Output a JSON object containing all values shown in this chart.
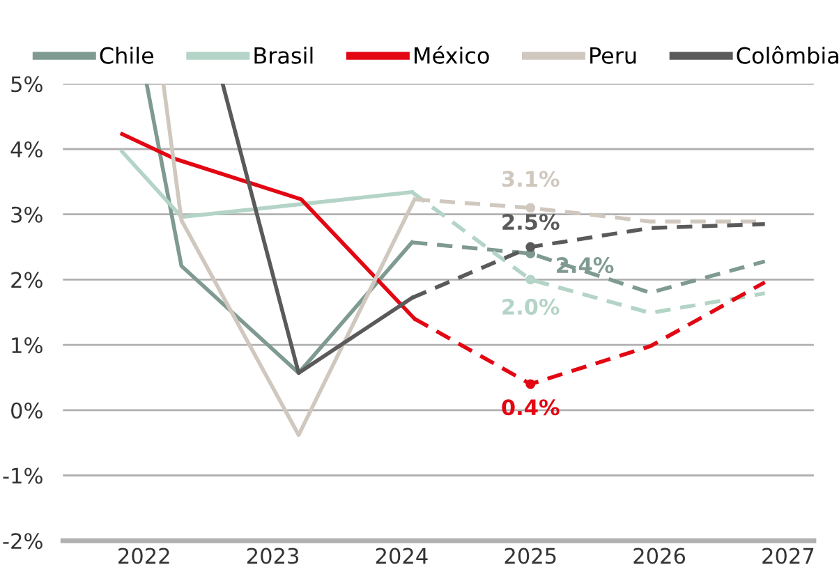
{
  "chart_data": {
    "type": "line",
    "series": [
      {
        "name": "Chile",
        "color": "#7f9a90",
        "line_style": "solid",
        "x": [
          2022.02,
          2022.29,
          2023.2,
          2024.08
        ],
        "values": [
          5.0,
          2.21,
          0.57,
          2.57
        ]
      },
      {
        "color": "#7f9a90",
        "line_style": "dashed",
        "x": [
          2024.08,
          2025.0,
          2025.93,
          2026.82
        ],
        "values": [
          2.57,
          2.4,
          1.8,
          2.28
        ],
        "value_labels": [
          null,
          "2.4%",
          null,
          null
        ]
      },
      {
        "name": "Brasil",
        "color": "#b3d4c6",
        "line_style": "solid",
        "x": [
          2021.83,
          2022.29,
          2024.08
        ],
        "values": [
          3.96,
          2.96,
          3.34
        ]
      },
      {
        "color": "#b3d4c6",
        "line_style": "dashed",
        "x": [
          2024.08,
          2025.0,
          2025.93,
          2026.82
        ],
        "values": [
          3.34,
          2.0,
          1.49,
          1.79
        ],
        "value_labels": [
          null,
          "2.0%",
          null,
          null
        ]
      },
      {
        "name": "México",
        "color": "#e30613",
        "line_style": "solid",
        "x": [
          2021.83,
          2022.24,
          2023.22,
          2024.1
        ],
        "values": [
          4.23,
          3.85,
          3.23,
          1.4
        ]
      },
      {
        "color": "#e30613",
        "line_style": "dashed",
        "x": [
          2024.1,
          2025.0,
          2025.93,
          2026.82
        ],
        "values": [
          1.4,
          0.4,
          0.98,
          1.96
        ],
        "value_labels": [
          null,
          "0.4%",
          null,
          null
        ]
      },
      {
        "name": "Peru",
        "color": "#d0c8bf",
        "line_style": "solid",
        "x": [
          2022.15,
          2022.29,
          2023.2,
          2024.1
        ],
        "values": [
          5.0,
          2.91,
          -0.38,
          3.23
        ]
      },
      {
        "color": "#d0c8bf",
        "line_style": "dashed",
        "x": [
          2024.1,
          2025.0,
          2025.93,
          2026.82
        ],
        "values": [
          3.23,
          3.1,
          2.89,
          2.89
        ],
        "value_labels": [
          null,
          "3.1%",
          null,
          null
        ]
      },
      {
        "name": "Colômbia",
        "color": "#5a5a5a",
        "line_style": "solid",
        "x": [
          2022.61,
          2023.2,
          2024.08
        ],
        "values": [
          5.0,
          0.57,
          1.72
        ]
      },
      {
        "color": "#5a5a5a",
        "line_style": "dashed",
        "x": [
          2024.08,
          2025.0,
          2025.93,
          2026.82
        ],
        "values": [
          1.72,
          2.5,
          2.79,
          2.85
        ],
        "value_labels": [
          null,
          "2.5%",
          null,
          null
        ]
      }
    ],
    "xlim": [
      2021.37,
      2027.2
    ],
    "xticks": [
      2022,
      2023,
      2024,
      2025,
      2026,
      2027
    ],
    "ylim": [
      -2,
      5
    ],
    "yticks": [
      {
        "value": -2,
        "label": "-2%"
      },
      {
        "value": -1,
        "label": "-1%"
      },
      {
        "value": 0,
        "label": "0%"
      },
      {
        "value": 1,
        "label": "1%"
      },
      {
        "value": 2,
        "label": "2%"
      },
      {
        "value": 3,
        "label": "3%"
      },
      {
        "value": 4,
        "label": "4%"
      },
      {
        "value": 5,
        "label": "5%"
      }
    ],
    "grid": "y",
    "legend": "top",
    "marker": "none"
  }
}
